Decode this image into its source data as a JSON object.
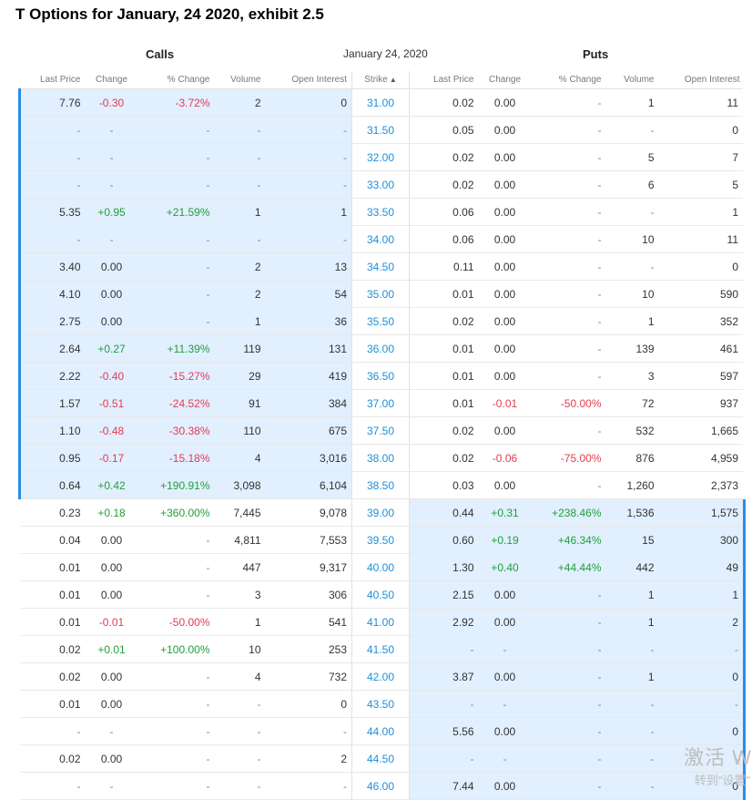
{
  "title": "T Options for January, 24 2020, exhibit 2.5",
  "section": {
    "calls": "Calls",
    "date": "January 24, 2020",
    "puts": "Puts"
  },
  "columns": {
    "call_last": "Last Price",
    "call_change": "Change",
    "call_pct": "% Change",
    "call_volume": "Volume",
    "call_oi": "Open Interest",
    "strike": "Strike",
    "put_last": "Last Price",
    "put_change": "Change",
    "put_pct": "% Change",
    "put_volume": "Volume",
    "put_oi": "Open Interest"
  },
  "sort_icon": "caret-up-icon",
  "colors": {
    "positive": "#21a03b",
    "negative": "#e53b4f",
    "strike_link": "#1e8fd8",
    "in_the_money_bg": "#e1efff",
    "in_the_money_bar": "#2b8ce6"
  },
  "rows": [
    {
      "itm_call": true,
      "itm_put": false,
      "call": [
        "7.76",
        "-0.30",
        "-3.72%",
        "2",
        "0"
      ],
      "strike": "31.00",
      "put": [
        "0.02",
        "0.00",
        "-",
        "1",
        "11"
      ]
    },
    {
      "itm_call": true,
      "itm_put": false,
      "call": [
        "-",
        "-",
        "-",
        "-",
        "-"
      ],
      "strike": "31.50",
      "put": [
        "0.05",
        "0.00",
        "-",
        "-",
        "0"
      ]
    },
    {
      "itm_call": true,
      "itm_put": false,
      "call": [
        "-",
        "-",
        "-",
        "-",
        "-"
      ],
      "strike": "32.00",
      "put": [
        "0.02",
        "0.00",
        "-",
        "5",
        "7"
      ]
    },
    {
      "itm_call": true,
      "itm_put": false,
      "call": [
        "-",
        "-",
        "-",
        "-",
        "-"
      ],
      "strike": "33.00",
      "put": [
        "0.02",
        "0.00",
        "-",
        "6",
        "5"
      ]
    },
    {
      "itm_call": true,
      "itm_put": false,
      "call": [
        "5.35",
        "+0.95",
        "+21.59%",
        "1",
        "1"
      ],
      "strike": "33.50",
      "put": [
        "0.06",
        "0.00",
        "-",
        "-",
        "1"
      ]
    },
    {
      "itm_call": true,
      "itm_put": false,
      "call": [
        "-",
        "-",
        "-",
        "-",
        "-"
      ],
      "strike": "34.00",
      "put": [
        "0.06",
        "0.00",
        "-",
        "10",
        "11"
      ]
    },
    {
      "itm_call": true,
      "itm_put": false,
      "call": [
        "3.40",
        "0.00",
        "-",
        "2",
        "13"
      ],
      "strike": "34.50",
      "put": [
        "0.11",
        "0.00",
        "-",
        "-",
        "0"
      ]
    },
    {
      "itm_call": true,
      "itm_put": false,
      "call": [
        "4.10",
        "0.00",
        "-",
        "2",
        "54"
      ],
      "strike": "35.00",
      "put": [
        "0.01",
        "0.00",
        "-",
        "10",
        "590"
      ]
    },
    {
      "itm_call": true,
      "itm_put": false,
      "call": [
        "2.75",
        "0.00",
        "-",
        "1",
        "36"
      ],
      "strike": "35.50",
      "put": [
        "0.02",
        "0.00",
        "-",
        "1",
        "352"
      ]
    },
    {
      "itm_call": true,
      "itm_put": false,
      "call": [
        "2.64",
        "+0.27",
        "+11.39%",
        "119",
        "131"
      ],
      "strike": "36.00",
      "put": [
        "0.01",
        "0.00",
        "-",
        "139",
        "461"
      ]
    },
    {
      "itm_call": true,
      "itm_put": false,
      "call": [
        "2.22",
        "-0.40",
        "-15.27%",
        "29",
        "419"
      ],
      "strike": "36.50",
      "put": [
        "0.01",
        "0.00",
        "-",
        "3",
        "597"
      ]
    },
    {
      "itm_call": true,
      "itm_put": false,
      "call": [
        "1.57",
        "-0.51",
        "-24.52%",
        "91",
        "384"
      ],
      "strike": "37.00",
      "put": [
        "0.01",
        "-0.01",
        "-50.00%",
        "72",
        "937"
      ]
    },
    {
      "itm_call": true,
      "itm_put": false,
      "call": [
        "1.10",
        "-0.48",
        "-30.38%",
        "110",
        "675"
      ],
      "strike": "37.50",
      "put": [
        "0.02",
        "0.00",
        "-",
        "532",
        "1,665"
      ]
    },
    {
      "itm_call": true,
      "itm_put": false,
      "call": [
        "0.95",
        "-0.17",
        "-15.18%",
        "4",
        "3,016"
      ],
      "strike": "38.00",
      "put": [
        "0.02",
        "-0.06",
        "-75.00%",
        "876",
        "4,959"
      ]
    },
    {
      "itm_call": true,
      "itm_put": false,
      "call": [
        "0.64",
        "+0.42",
        "+190.91%",
        "3,098",
        "6,104"
      ],
      "strike": "38.50",
      "put": [
        "0.03",
        "0.00",
        "-",
        "1,260",
        "2,373"
      ]
    },
    {
      "itm_call": false,
      "itm_put": true,
      "call": [
        "0.23",
        "+0.18",
        "+360.00%",
        "7,445",
        "9,078"
      ],
      "strike": "39.00",
      "put": [
        "0.44",
        "+0.31",
        "+238.46%",
        "1,536",
        "1,575"
      ]
    },
    {
      "itm_call": false,
      "itm_put": true,
      "call": [
        "0.04",
        "0.00",
        "-",
        "4,811",
        "7,553"
      ],
      "strike": "39.50",
      "put": [
        "0.60",
        "+0.19",
        "+46.34%",
        "15",
        "300"
      ]
    },
    {
      "itm_call": false,
      "itm_put": true,
      "call": [
        "0.01",
        "0.00",
        "-",
        "447",
        "9,317"
      ],
      "strike": "40.00",
      "put": [
        "1.30",
        "+0.40",
        "+44.44%",
        "442",
        "49"
      ]
    },
    {
      "itm_call": false,
      "itm_put": true,
      "call": [
        "0.01",
        "0.00",
        "-",
        "3",
        "306"
      ],
      "strike": "40.50",
      "put": [
        "2.15",
        "0.00",
        "-",
        "1",
        "1"
      ]
    },
    {
      "itm_call": false,
      "itm_put": true,
      "call": [
        "0.01",
        "-0.01",
        "-50.00%",
        "1",
        "541"
      ],
      "strike": "41.00",
      "put": [
        "2.92",
        "0.00",
        "-",
        "1",
        "2"
      ]
    },
    {
      "itm_call": false,
      "itm_put": true,
      "call": [
        "0.02",
        "+0.01",
        "+100.00%",
        "10",
        "253"
      ],
      "strike": "41.50",
      "put": [
        "-",
        "-",
        "-",
        "-",
        "-"
      ]
    },
    {
      "itm_call": false,
      "itm_put": true,
      "call": [
        "0.02",
        "0.00",
        "-",
        "4",
        "732"
      ],
      "strike": "42.00",
      "put": [
        "3.87",
        "0.00",
        "-",
        "1",
        "0"
      ]
    },
    {
      "itm_call": false,
      "itm_put": true,
      "call": [
        "0.01",
        "0.00",
        "-",
        "-",
        "0"
      ],
      "strike": "43.50",
      "put": [
        "-",
        "-",
        "-",
        "-",
        "-"
      ]
    },
    {
      "itm_call": false,
      "itm_put": true,
      "call": [
        "-",
        "-",
        "-",
        "-",
        "-"
      ],
      "strike": "44.00",
      "put": [
        "5.56",
        "0.00",
        "-",
        "-",
        "0"
      ]
    },
    {
      "itm_call": false,
      "itm_put": true,
      "call": [
        "0.02",
        "0.00",
        "-",
        "-",
        "2"
      ],
      "strike": "44.50",
      "put": [
        "-",
        "-",
        "-",
        "-",
        "-"
      ]
    },
    {
      "itm_call": false,
      "itm_put": true,
      "call": [
        "-",
        "-",
        "-",
        "-",
        "-"
      ],
      "strike": "46.00",
      "put": [
        "7.44",
        "0.00",
        "-",
        "-",
        "0"
      ]
    }
  ],
  "watermark": {
    "line1": "激活 W",
    "line2": "转到\"设置\""
  }
}
